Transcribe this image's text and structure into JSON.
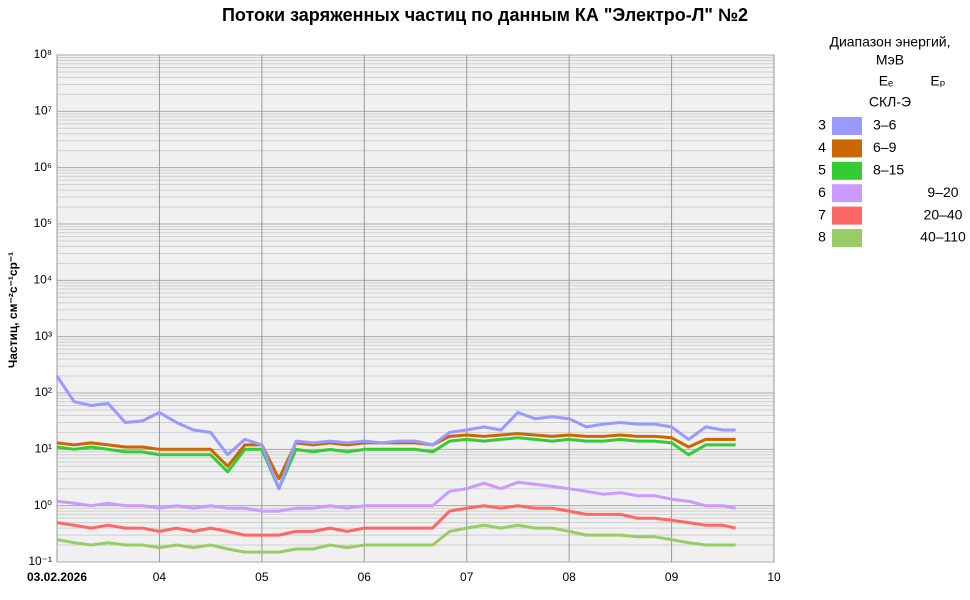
{
  "chart_data": {
    "type": "line",
    "title": "Потоки заряженных частиц по данным КА \"Электро-Л\" №2",
    "y_label": "Частиц, см⁻²с⁻¹ср⁻¹",
    "log_y": true,
    "grid": true,
    "minor_grid": true,
    "legend_title": "Диапазон энергий,",
    "legend_unit": "МэВ",
    "legend_columns": [
      "Eₑ",
      "Eₚ"
    ],
    "legend_group": "СКЛ-Э",
    "xlim": [
      0,
      168
    ],
    "xticks": [
      {
        "value": 0,
        "label": "03.02.2026"
      },
      {
        "value": 24,
        "label": "04"
      },
      {
        "value": 48,
        "label": "05"
      },
      {
        "value": 72,
        "label": "06"
      },
      {
        "value": 96,
        "label": "07"
      },
      {
        "value": 120,
        "label": "08"
      },
      {
        "value": 144,
        "label": "09"
      },
      {
        "value": 168,
        "label": "10"
      }
    ],
    "ylim": [
      0.1,
      100000000
    ],
    "yticks": [
      {
        "value": 0.1,
        "label": "10⁻¹"
      },
      {
        "value": 1,
        "label": "10⁰"
      },
      {
        "value": 10,
        "label": "10¹"
      },
      {
        "value": 100,
        "label": "10²"
      },
      {
        "value": 1000,
        "label": "10³"
      },
      {
        "value": 10000,
        "label": "10⁴"
      },
      {
        "value": 100000,
        "label": "10⁵"
      },
      {
        "value": 1000000,
        "label": "10⁶"
      },
      {
        "value": 10000000,
        "label": "10⁷"
      },
      {
        "value": 100000000,
        "label": "10⁸"
      }
    ],
    "x": [
      0,
      4,
      8,
      12,
      16,
      20,
      24,
      28,
      32,
      36,
      40,
      44,
      48,
      52,
      56,
      60,
      64,
      68,
      72,
      76,
      80,
      84,
      88,
      92,
      96,
      100,
      104,
      108,
      112,
      116,
      120,
      124,
      128,
      132,
      136,
      140,
      144,
      148,
      152,
      156,
      159
    ],
    "series": [
      {
        "channel": "3",
        "name": "3–6",
        "column": "e",
        "color": "#9999ff",
        "values": [
          200,
          70,
          60,
          65,
          30,
          32,
          45,
          30,
          22,
          20,
          8,
          15,
          12,
          2,
          14,
          13,
          14,
          13,
          14,
          13,
          14,
          14,
          12,
          20,
          22,
          25,
          22,
          45,
          35,
          38,
          35,
          25,
          28,
          30,
          28,
          28,
          25,
          15,
          25,
          22,
          22
        ]
      },
      {
        "channel": "4",
        "name": "6–9",
        "column": "e",
        "color": "#cc6600",
        "values": [
          13,
          12,
          13,
          12,
          11,
          11,
          10,
          10,
          10,
          10,
          5,
          12,
          12,
          3,
          13,
          12,
          13,
          12,
          13,
          13,
          13,
          13,
          12,
          17,
          18,
          17,
          18,
          19,
          18,
          17,
          18,
          17,
          17,
          18,
          17,
          17,
          16,
          11,
          15,
          15,
          15
        ]
      },
      {
        "channel": "5",
        "name": "8–15",
        "column": "e",
        "color": "#33cc33",
        "values": [
          11,
          10,
          11,
          10,
          9,
          9,
          8,
          8,
          8,
          8,
          4,
          10,
          10,
          2,
          10,
          9,
          10,
          9,
          10,
          10,
          10,
          10,
          9,
          14,
          15,
          14,
          15,
          16,
          15,
          14,
          15,
          14,
          14,
          15,
          14,
          14,
          13,
          8,
          12,
          12,
          12
        ]
      },
      {
        "channel": "6",
        "name": "9–20",
        "column": "p",
        "color": "#cc99ff",
        "values": [
          1.2,
          1.1,
          1.0,
          1.1,
          1.0,
          1.0,
          0.9,
          1.0,
          0.9,
          1.0,
          0.9,
          0.9,
          0.8,
          0.8,
          0.9,
          0.9,
          1.0,
          0.9,
          1.0,
          1.0,
          1.0,
          1.0,
          1.0,
          1.8,
          2.0,
          2.5,
          2.0,
          2.6,
          2.4,
          2.2,
          2.0,
          1.8,
          1.6,
          1.7,
          1.5,
          1.5,
          1.3,
          1.2,
          1.0,
          1.0,
          0.9
        ]
      },
      {
        "channel": "7",
        "name": "20–40",
        "column": "p",
        "color": "#ff6666",
        "values": [
          0.5,
          0.45,
          0.4,
          0.45,
          0.4,
          0.4,
          0.35,
          0.4,
          0.35,
          0.4,
          0.35,
          0.3,
          0.3,
          0.3,
          0.35,
          0.35,
          0.4,
          0.35,
          0.4,
          0.4,
          0.4,
          0.4,
          0.4,
          0.8,
          0.9,
          1.0,
          0.9,
          1.0,
          0.9,
          0.9,
          0.8,
          0.7,
          0.7,
          0.7,
          0.6,
          0.6,
          0.55,
          0.5,
          0.45,
          0.45,
          0.4
        ]
      },
      {
        "channel": "8",
        "name": "40–110",
        "column": "p",
        "color": "#99cc66",
        "values": [
          0.25,
          0.22,
          0.2,
          0.22,
          0.2,
          0.2,
          0.18,
          0.2,
          0.18,
          0.2,
          0.17,
          0.15,
          0.15,
          0.15,
          0.17,
          0.17,
          0.2,
          0.18,
          0.2,
          0.2,
          0.2,
          0.2,
          0.2,
          0.35,
          0.4,
          0.45,
          0.4,
          0.45,
          0.4,
          0.4,
          0.35,
          0.3,
          0.3,
          0.3,
          0.28,
          0.28,
          0.25,
          0.22,
          0.2,
          0.2,
          0.2
        ]
      }
    ]
  }
}
